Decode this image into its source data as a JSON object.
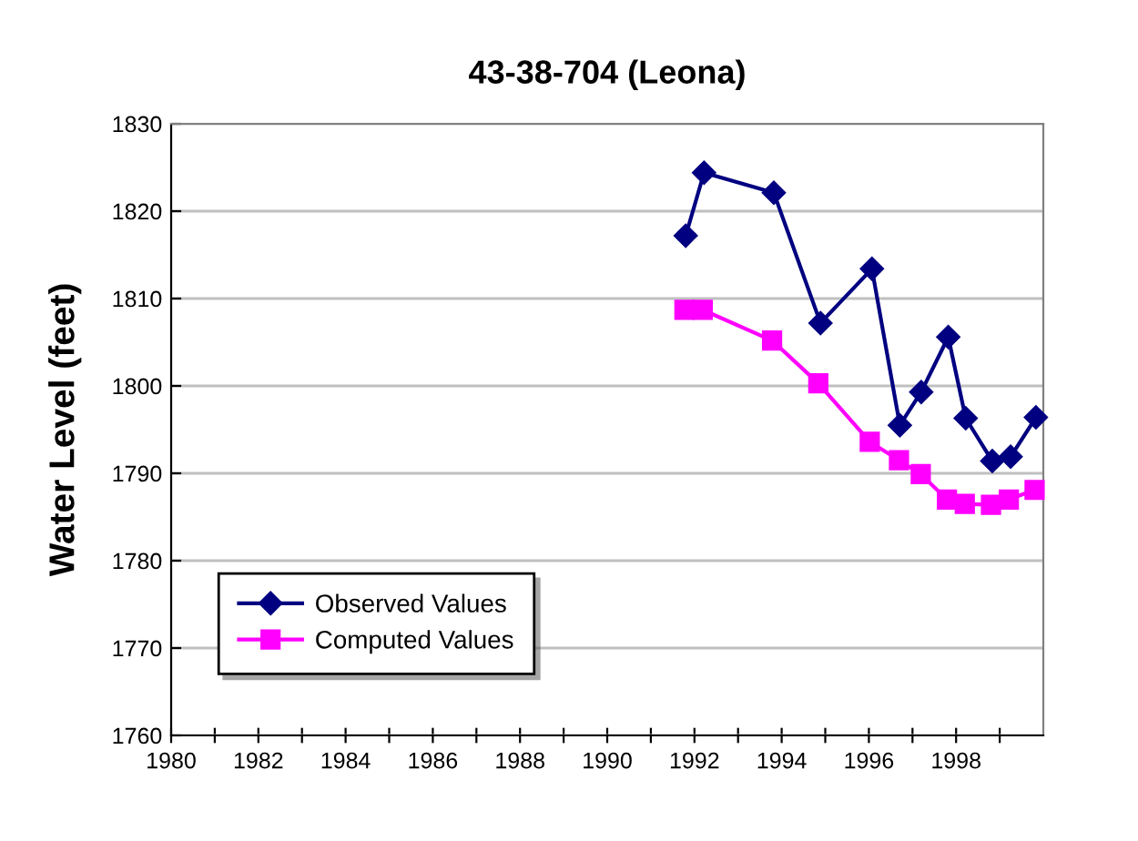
{
  "chart_data": {
    "type": "line",
    "title": "43-38-704 (Leona)",
    "ylabel": "Water Level (feet)",
    "xlim": [
      1980,
      2000
    ],
    "xticks": [
      1980,
      {
        "value": 1981,
        "label": null
      },
      1982,
      {
        "value": 1983,
        "label": null
      },
      1984,
      {
        "value": 1985,
        "label": null
      },
      1986,
      {
        "value": 1987,
        "label": null
      },
      1988,
      {
        "value": 1989,
        "label": null
      },
      1990,
      {
        "value": 1991,
        "label": null
      },
      1992,
      {
        "value": 1993,
        "label": null
      },
      1994,
      {
        "value": 1995,
        "label": null
      },
      1996,
      {
        "value": 1997,
        "label": null
      },
      1998,
      {
        "value": 1999,
        "label": null
      }
    ],
    "ylim": [
      1760,
      1830
    ],
    "yticks": [
      1760,
      1770,
      1780,
      1790,
      1800,
      1810,
      1820,
      1830
    ],
    "grid": "y",
    "legend": "bottom left",
    "series": [
      {
        "name": "Observed Values",
        "color": "#000080",
        "marker": "diamond",
        "x": [
          1991.8,
          1992.22,
          1993.82,
          1994.89,
          1996.07,
          1996.71,
          1997.2,
          1997.82,
          1998.22,
          1998.83,
          1999.25,
          1999.83
        ],
        "values": [
          1817.2,
          1824.4,
          1822.1,
          1807.2,
          1813.4,
          1795.5,
          1799.3,
          1805.6,
          1796.3,
          1791.4,
          1791.9,
          1796.4
        ]
      },
      {
        "name": "Computed Values",
        "color": "#ff00ff",
        "marker": "square",
        "x": [
          1991.77,
          1992.19,
          1993.78,
          1994.84,
          1996.02,
          1996.69,
          1997.19,
          1997.79,
          1998.2,
          1998.8,
          1999.21,
          1999.8
        ],
        "values": [
          1808.7,
          1808.7,
          1805.2,
          1800.3,
          1793.6,
          1791.5,
          1789.9,
          1787.0,
          1786.5,
          1786.4,
          1787.0,
          1788.1
        ]
      }
    ]
  }
}
